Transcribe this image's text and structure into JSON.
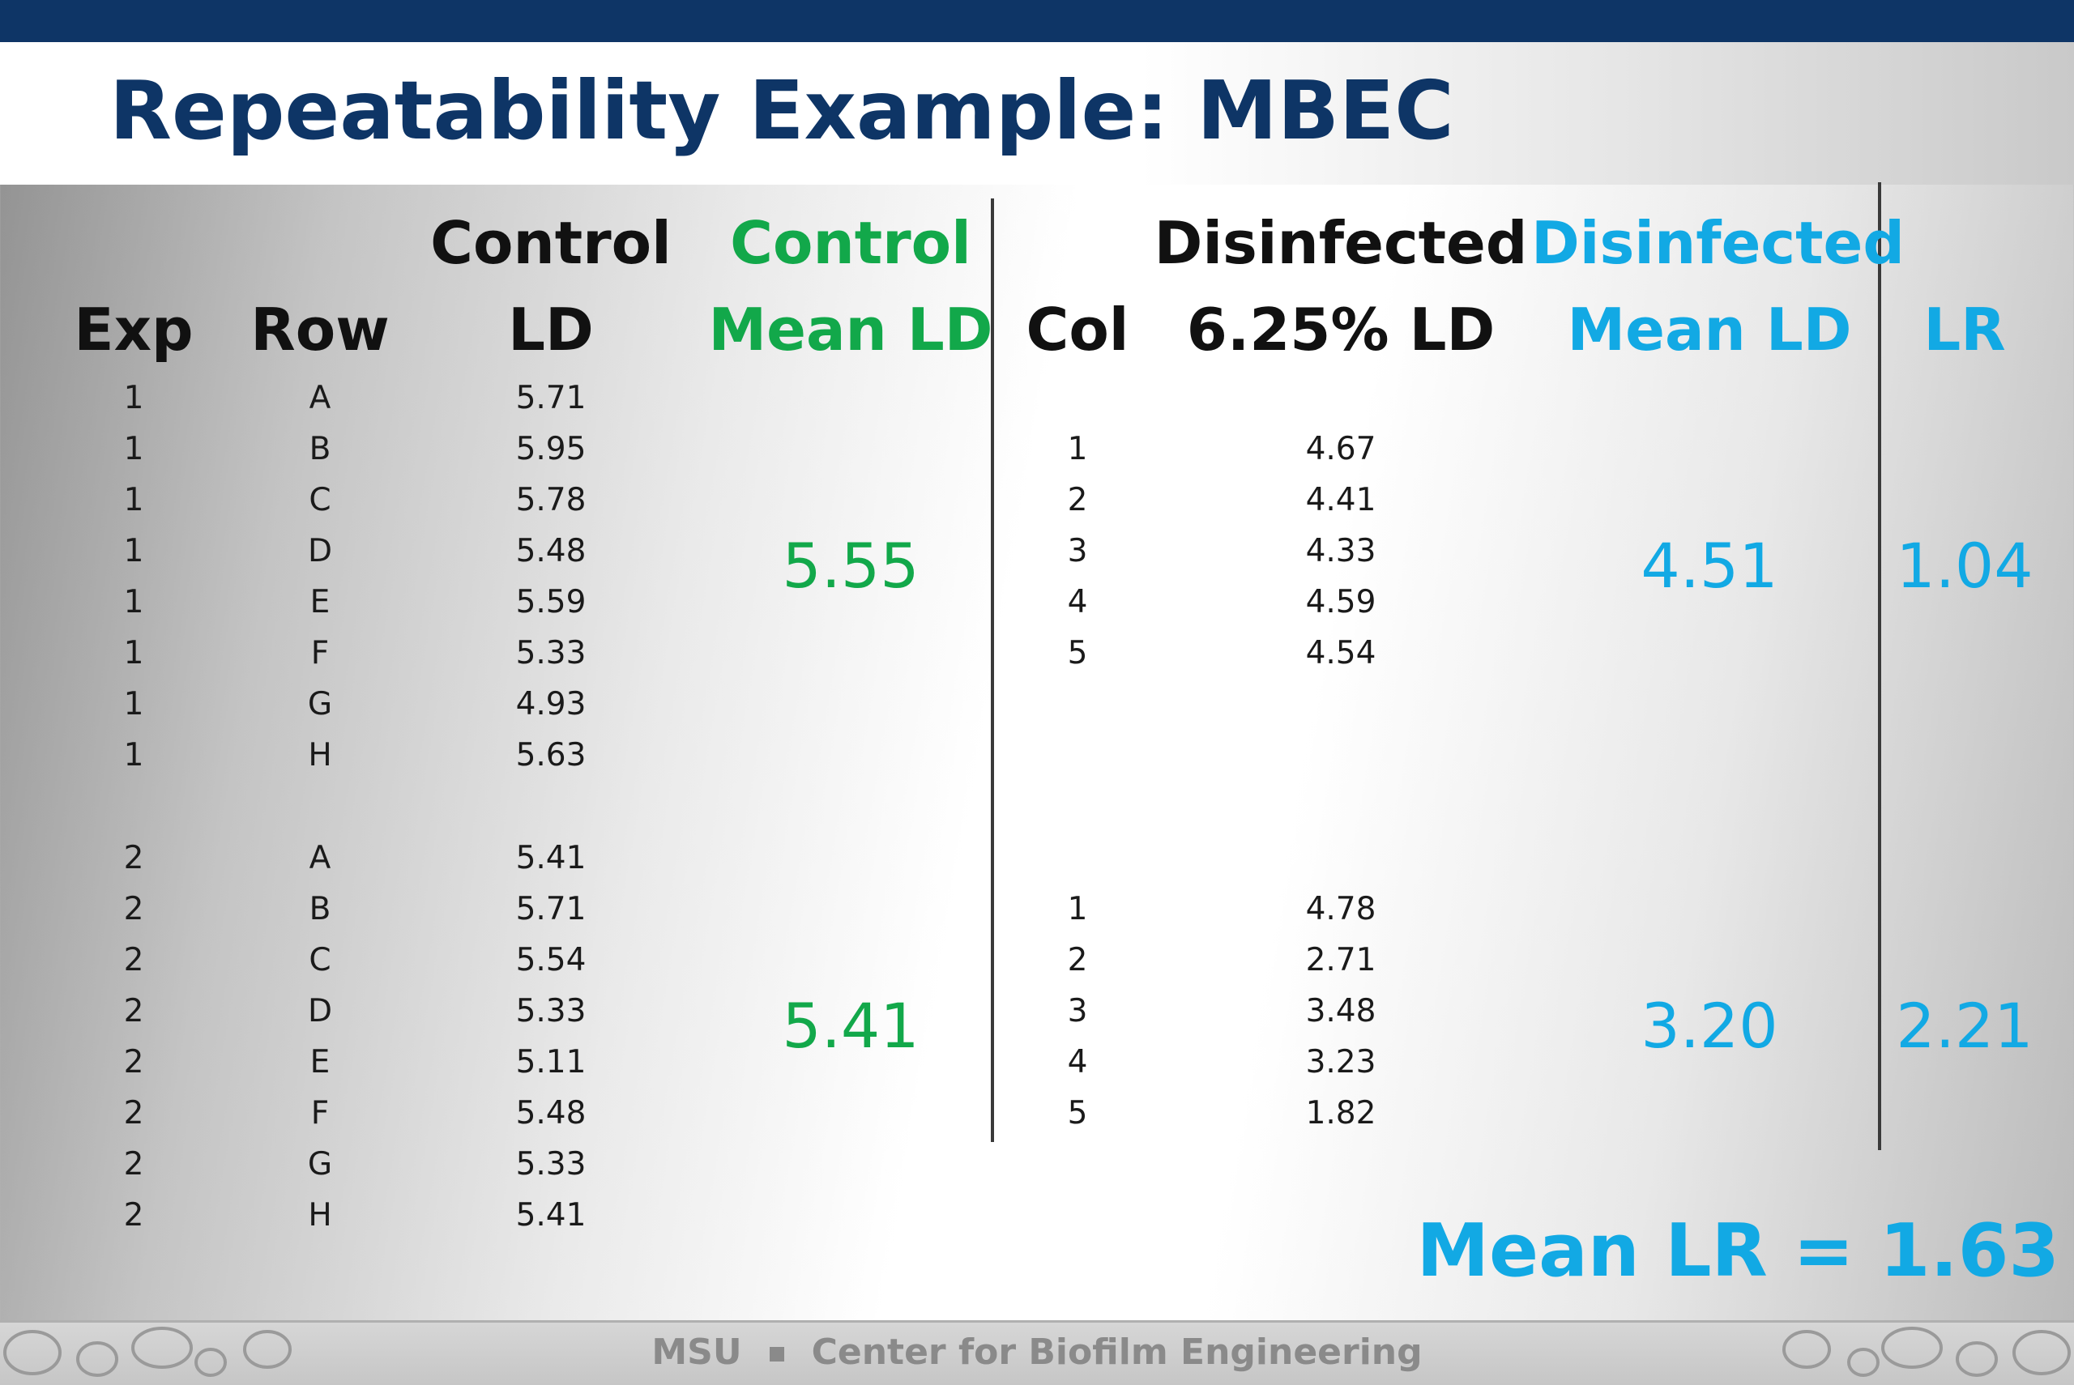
{
  "title": "Repeatability Example: MBEC",
  "headers": {
    "exp": "Exp",
    "row": "Row",
    "control_ld_line1": "Control",
    "control_ld_line2": "LD",
    "control_mean_line1": "Control",
    "control_mean_line2": "Mean LD",
    "col": "Col",
    "disinfected_ld_line1": "Disinfected",
    "disinfected_ld_line2": "6.25% LD",
    "disinfected_mean_line1": "Disinfected",
    "disinfected_mean_line2": "Mean LD",
    "lr": "LR"
  },
  "experiments": [
    {
      "rows": [
        {
          "exp": "1",
          "row": "A",
          "ld": "5.71"
        },
        {
          "exp": "1",
          "row": "B",
          "ld": "5.95"
        },
        {
          "exp": "1",
          "row": "C",
          "ld": "5.78"
        },
        {
          "exp": "1",
          "row": "D",
          "ld": "5.48"
        },
        {
          "exp": "1",
          "row": "E",
          "ld": "5.59"
        },
        {
          "exp": "1",
          "row": "F",
          "ld": "5.33"
        },
        {
          "exp": "1",
          "row": "G",
          "ld": "4.93"
        },
        {
          "exp": "1",
          "row": "H",
          "ld": "5.63"
        }
      ],
      "cols": [
        {
          "col": "1",
          "ld": "4.67"
        },
        {
          "col": "2",
          "ld": "4.41"
        },
        {
          "col": "3",
          "ld": "4.33"
        },
        {
          "col": "4",
          "ld": "4.59"
        },
        {
          "col": "5",
          "ld": "4.54"
        }
      ],
      "control_mean": "5.55",
      "disinfected_mean": "4.51",
      "lr": "1.04"
    },
    {
      "rows": [
        {
          "exp": "2",
          "row": "A",
          "ld": "5.41"
        },
        {
          "exp": "2",
          "row": "B",
          "ld": "5.71"
        },
        {
          "exp": "2",
          "row": "C",
          "ld": "5.54"
        },
        {
          "exp": "2",
          "row": "D",
          "ld": "5.33"
        },
        {
          "exp": "2",
          "row": "E",
          "ld": "5.11"
        },
        {
          "exp": "2",
          "row": "F",
          "ld": "5.48"
        },
        {
          "exp": "2",
          "row": "G",
          "ld": "5.33"
        },
        {
          "exp": "2",
          "row": "H",
          "ld": "5.41"
        }
      ],
      "cols": [
        {
          "col": "1",
          "ld": "4.78"
        },
        {
          "col": "2",
          "ld": "2.71"
        },
        {
          "col": "3",
          "ld": "3.48"
        },
        {
          "col": "4",
          "ld": "3.23"
        },
        {
          "col": "5",
          "ld": "1.82"
        }
      ],
      "control_mean": "5.41",
      "disinfected_mean": "3.20",
      "lr": "2.21"
    }
  ],
  "mean_lr": "Mean LR = 1.63",
  "footer": {
    "left": "MSU",
    "right": "Center for Biofilm Engineering"
  },
  "colors": {
    "title": "#0e3566",
    "control_green": "#12a84a",
    "disinfected_blue": "#12a9e4"
  }
}
